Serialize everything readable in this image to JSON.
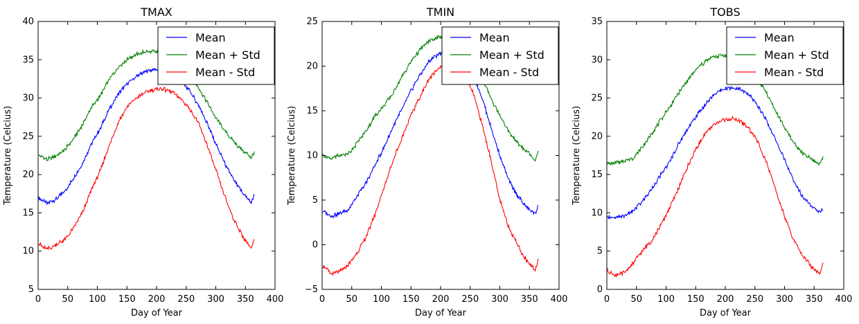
{
  "chart_data": [
    {
      "type": "line",
      "title": "TMAX",
      "xlabel": "Day of Year",
      "ylabel": "Temperature (Celcius)",
      "xlim": [
        0,
        400
      ],
      "ylim": [
        5,
        40
      ],
      "xticks": [
        "0",
        "50",
        "100",
        "150",
        "200",
        "250",
        "300",
        "350",
        "400"
      ],
      "yticks": [
        "5",
        "10",
        "15",
        "20",
        "25",
        "30",
        "35",
        "40"
      ],
      "legend": "top-right",
      "x": [
        0,
        15,
        30,
        45,
        60,
        75,
        90,
        105,
        120,
        135,
        150,
        165,
        180,
        195,
        210,
        225,
        240,
        255,
        270,
        285,
        300,
        315,
        330,
        345,
        360,
        365
      ],
      "series": [
        {
          "name": "Mean",
          "color": "#0000ff",
          "values": [
            17,
            16.2,
            16.8,
            17.8,
            19.5,
            21.5,
            24,
            26,
            28.5,
            30.5,
            31.8,
            32.8,
            33.4,
            33.7,
            33.6,
            33.1,
            32.3,
            31,
            29.2,
            26.8,
            24,
            21.5,
            19.3,
            17.6,
            16.3,
            17.5
          ]
        },
        {
          "name": "Mean + Std",
          "color": "#008000",
          "values": [
            22.5,
            22,
            22.4,
            23.2,
            24.7,
            26.5,
            28.8,
            30.3,
            32.4,
            34,
            35,
            35.7,
            36,
            36.1,
            35.8,
            35.2,
            34.3,
            33.2,
            31.5,
            29.5,
            27.4,
            25.7,
            24.3,
            23.2,
            22.2,
            23
          ]
        },
        {
          "name": "Mean - Std",
          "color": "#ff0000",
          "values": [
            11,
            10.2,
            10.8,
            11.5,
            13,
            15,
            18,
            20.5,
            23.8,
            26.8,
            28.8,
            29.9,
            30.7,
            31.1,
            31.2,
            30.8,
            30,
            28.7,
            26.8,
            24,
            20.6,
            17.2,
            14.2,
            12,
            10.4,
            11.5
          ]
        }
      ]
    },
    {
      "type": "line",
      "title": "TMIN",
      "xlabel": "Day of Year",
      "ylabel": "Temperature (Celcius)",
      "xlim": [
        0,
        400
      ],
      "ylim": [
        -5,
        25
      ],
      "xticks": [
        "0",
        "50",
        "100",
        "150",
        "200",
        "250",
        "300",
        "350",
        "400"
      ],
      "yticks": [
        "−5",
        "0",
        "5",
        "10",
        "15",
        "20",
        "25"
      ],
      "legend": "top-right",
      "x": [
        0,
        15,
        30,
        45,
        60,
        75,
        90,
        105,
        120,
        135,
        150,
        165,
        180,
        195,
        210,
        225,
        240,
        255,
        270,
        285,
        300,
        315,
        330,
        345,
        360,
        365
      ],
      "series": [
        {
          "name": "Mean",
          "color": "#0000ff",
          "values": [
            3.8,
            3.2,
            3.5,
            4,
            5.5,
            7,
            9,
            11,
            13.2,
            15.2,
            17.2,
            19,
            20.5,
            21.3,
            21.7,
            21.5,
            20.6,
            19,
            16.5,
            13.2,
            10,
            7.2,
            5.5,
            4.2,
            3.5,
            4.5
          ]
        },
        {
          "name": "Mean + Std",
          "color": "#008000",
          "values": [
            10,
            9.7,
            10,
            10.2,
            11.5,
            12.8,
            14.5,
            15.6,
            17,
            18.8,
            20.5,
            21.8,
            22.8,
            23.2,
            23.4,
            23,
            22,
            20.5,
            18.6,
            16.4,
            14.5,
            12.6,
            11.4,
            10.5,
            9.5,
            10.7
          ]
        },
        {
          "name": "Mean - Std",
          "color": "#ff0000",
          "values": [
            -2.2,
            -3.3,
            -3,
            -2.2,
            -0.8,
            1,
            3.5,
            6.5,
            9.5,
            12,
            14.5,
            16.5,
            18.5,
            19.7,
            20.2,
            20,
            19,
            17,
            13.5,
            9.5,
            5,
            2,
            0,
            -1.8,
            -2.8,
            -1.5
          ]
        }
      ]
    },
    {
      "type": "line",
      "title": "TOBS",
      "xlabel": "Day of Year",
      "ylabel": "Temperature (Celcius)",
      "xlim": [
        0,
        400
      ],
      "ylim": [
        0,
        35
      ],
      "xticks": [
        "0",
        "50",
        "100",
        "150",
        "200",
        "250",
        "300",
        "350",
        "400"
      ],
      "yticks": [
        "0",
        "5",
        "10",
        "15",
        "20",
        "25",
        "30",
        "35"
      ],
      "legend": "top-right",
      "x": [
        0,
        15,
        30,
        45,
        60,
        75,
        90,
        105,
        120,
        135,
        150,
        165,
        180,
        195,
        210,
        225,
        240,
        255,
        270,
        285,
        300,
        315,
        330,
        345,
        360,
        365
      ],
      "series": [
        {
          "name": "Mean",
          "color": "#0000ff",
          "values": [
            9.5,
            9.3,
            9.6,
            10.3,
            11.5,
            13,
            14.8,
            16.5,
            18.8,
            20.8,
            22.5,
            24,
            25.4,
            26.2,
            26.4,
            26.1,
            25.4,
            24,
            22,
            19.5,
            17,
            14.2,
            12.2,
            11,
            10,
            10.5
          ]
        },
        {
          "name": "Mean + Std",
          "color": "#008000",
          "values": [
            16.5,
            16.5,
            16.8,
            17.2,
            18.6,
            20.3,
            22,
            23.7,
            25.5,
            27.2,
            28.7,
            29.7,
            30.4,
            30.6,
            30.4,
            29.8,
            28.8,
            27.4,
            25.6,
            23.3,
            21.2,
            19.2,
            17.8,
            17,
            16.3,
            17.5
          ]
        },
        {
          "name": "Mean - Std",
          "color": "#ff0000",
          "values": [
            2.5,
            1.8,
            2.2,
            3.5,
            5,
            6.3,
            8.2,
            10.5,
            13,
            15.8,
            18.3,
            20.2,
            21.5,
            22.1,
            22.3,
            22,
            21,
            19.3,
            16.5,
            13,
            9.5,
            6.5,
            4.5,
            3,
            2,
            3.5
          ]
        }
      ]
    }
  ]
}
